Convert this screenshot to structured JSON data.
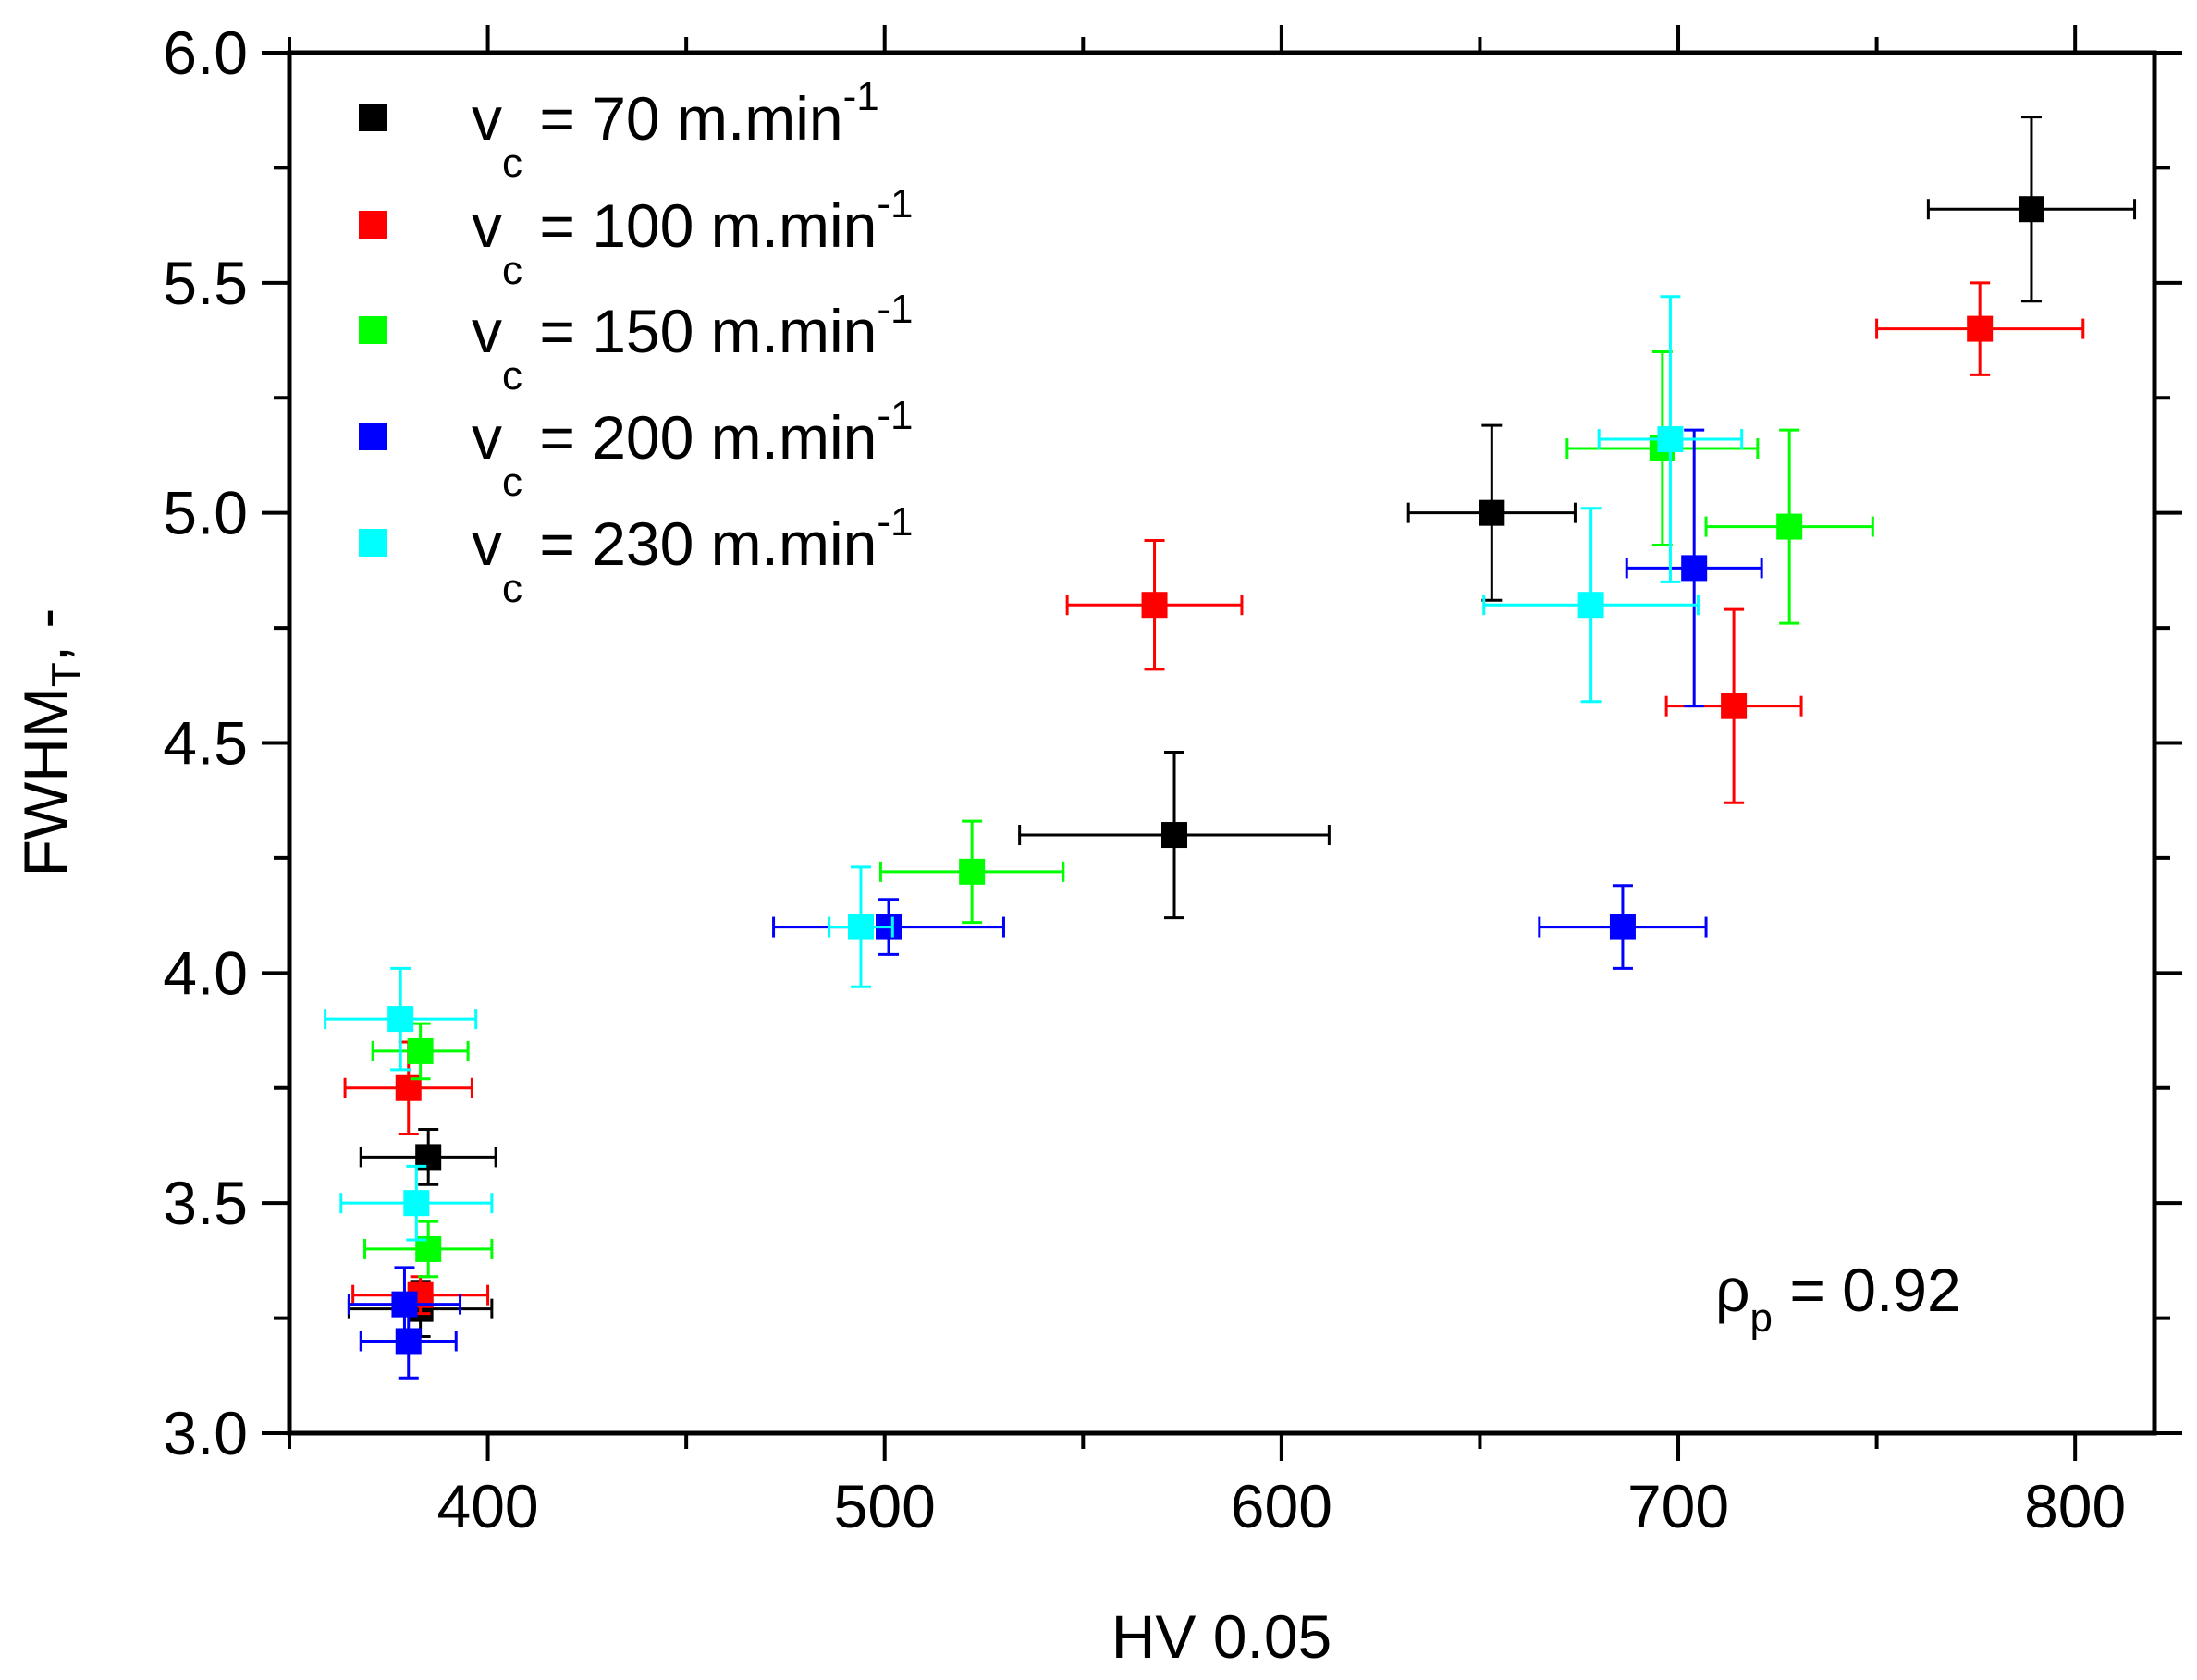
{
  "chart_data": {
    "type": "scatter",
    "xlabel": "HV 0.05",
    "ylabel_main": "FWHM",
    "ylabel_sub": "T",
    "ylabel_tail": ", -",
    "xlim": [
      350,
      820
    ],
    "ylim": [
      3.0,
      6.0
    ],
    "xticks": [
      400,
      500,
      600,
      700,
      800
    ],
    "yticks": [
      3.0,
      3.5,
      4.0,
      4.5,
      5.0,
      5.5,
      6.0
    ],
    "xtick_labels": [
      "400",
      "500",
      "600",
      "700",
      "800"
    ],
    "ytick_labels": [
      "3.0",
      "3.5",
      "4.0",
      "4.5",
      "5.0",
      "5.5",
      "6.0"
    ],
    "annotation": {
      "symbol": "ρ",
      "sub": "p",
      "text": " = 0.92"
    },
    "legend_position": "top-left",
    "series": [
      {
        "name": "v_c = 70 m.min^-1",
        "legend_v": "v",
        "legend_sub": "c",
        "legend_text": "= 70 m.min",
        "legend_sup": "-1",
        "color": "#000000",
        "points": [
          {
            "x": 789,
            "y": 5.66,
            "xerr": 26,
            "yerr": 0.2
          },
          {
            "x": 653,
            "y": 5.0,
            "xerr": 21,
            "yerr": 0.19
          },
          {
            "x": 573,
            "y": 4.3,
            "xerr": 39,
            "yerr": 0.18
          },
          {
            "x": 385,
            "y": 3.6,
            "xerr": 17,
            "yerr": 0.06
          },
          {
            "x": 383,
            "y": 3.27,
            "xerr": 18,
            "yerr": 0.06
          }
        ]
      },
      {
        "name": "v_c = 100 m.min^-1",
        "legend_v": "v",
        "legend_sub": "c",
        "legend_text": "= 100 m.min",
        "legend_sup": "-1",
        "color": "#ff0000",
        "points": [
          {
            "x": 776,
            "y": 5.4,
            "xerr": 26,
            "yerr": 0.1
          },
          {
            "x": 568,
            "y": 4.8,
            "xerr": 22,
            "yerr": 0.14
          },
          {
            "x": 714,
            "y": 4.58,
            "xerr": 17,
            "yerr": 0.21
          },
          {
            "x": 380,
            "y": 3.75,
            "xerr": 16,
            "yerr": 0.1
          },
          {
            "x": 383,
            "y": 3.3,
            "xerr": 17,
            "yerr": 0.04
          }
        ]
      },
      {
        "name": "v_c = 150 m.min^-1",
        "legend_v": "v",
        "legend_sub": "c",
        "legend_text": "= 150 m.min",
        "legend_sup": "-1",
        "color": "#00ff00",
        "points": [
          {
            "x": 696,
            "y": 5.14,
            "xerr": 24,
            "yerr": 0.21
          },
          {
            "x": 728,
            "y": 4.97,
            "xerr": 21,
            "yerr": 0.21
          },
          {
            "x": 522,
            "y": 4.22,
            "xerr": 23,
            "yerr": 0.11
          },
          {
            "x": 383,
            "y": 3.83,
            "xerr": 12,
            "yerr": 0.06
          },
          {
            "x": 385,
            "y": 3.4,
            "xerr": 16,
            "yerr": 0.06
          }
        ]
      },
      {
        "name": "v_c = 200 m.min^-1",
        "legend_v": "v",
        "legend_sub": "c",
        "legend_text": "= 200 m.min",
        "legend_sup": "-1",
        "color": "#0000ff",
        "points": [
          {
            "x": 704,
            "y": 4.88,
            "xerr": 17,
            "yerr": 0.3
          },
          {
            "x": 686,
            "y": 4.1,
            "xerr": 21,
            "yerr": 0.09
          },
          {
            "x": 501,
            "y": 4.1,
            "xerr": 29,
            "yerr": 0.06
          },
          {
            "x": 379,
            "y": 3.28,
            "xerr": 14,
            "yerr": 0.08
          },
          {
            "x": 380,
            "y": 3.2,
            "xerr": 12,
            "yerr": 0.08
          }
        ]
      },
      {
        "name": "v_c = 230 m.min^-1",
        "legend_v": "v",
        "legend_sub": "c",
        "legend_text": "= 230 m.min",
        "legend_sup": "-1",
        "color": "#00ffff",
        "points": [
          {
            "x": 698,
            "y": 5.16,
            "xerr": 18,
            "yerr": 0.31
          },
          {
            "x": 678,
            "y": 4.8,
            "xerr": 27,
            "yerr": 0.21
          },
          {
            "x": 494,
            "y": 4.1,
            "xerr": 8,
            "yerr": 0.13
          },
          {
            "x": 378,
            "y": 3.9,
            "xerr": 19,
            "yerr": 0.11
          },
          {
            "x": 382,
            "y": 3.5,
            "xerr": 19,
            "yerr": 0.08
          }
        ]
      }
    ]
  }
}
